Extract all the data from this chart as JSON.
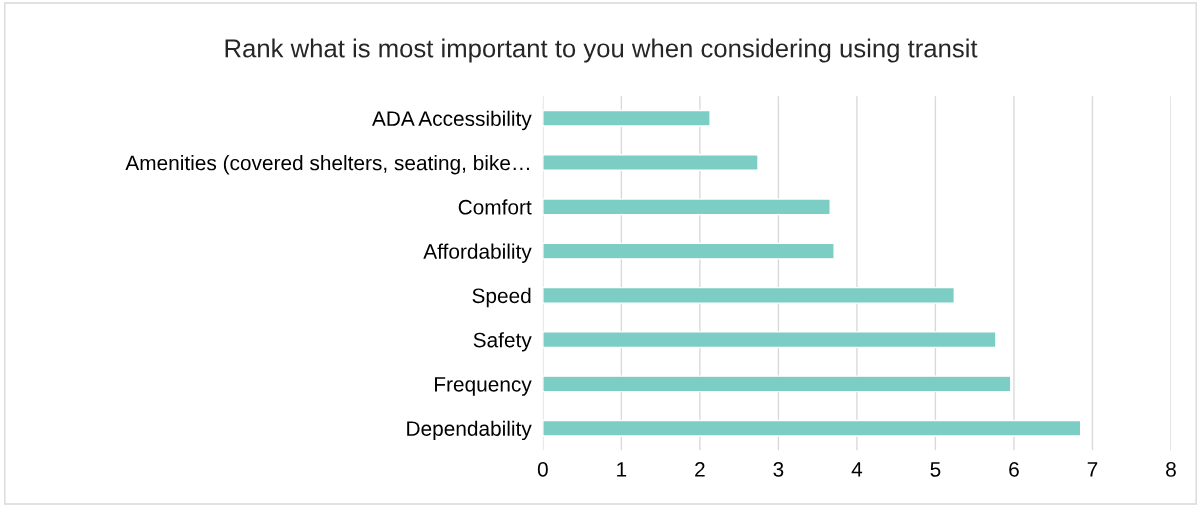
{
  "chart_data": {
    "type": "bar",
    "orientation": "horizontal",
    "title": "Rank what is most important to you when considering using transit",
    "categories": [
      "ADA Accessibility",
      "Amenities (covered shelters, seating, bike…",
      "Comfort",
      "Affordability",
      "Speed",
      "Safety",
      "Frequency",
      "Dependability"
    ],
    "values": [
      2.13,
      2.74,
      3.66,
      3.71,
      5.24,
      5.77,
      5.96,
      6.85
    ],
    "color": "#7ccdc4",
    "xlim": [
      0,
      8
    ],
    "xticks": [
      0,
      1,
      2,
      3,
      4,
      5,
      6,
      7,
      8
    ],
    "grid": "x",
    "legend": false
  }
}
